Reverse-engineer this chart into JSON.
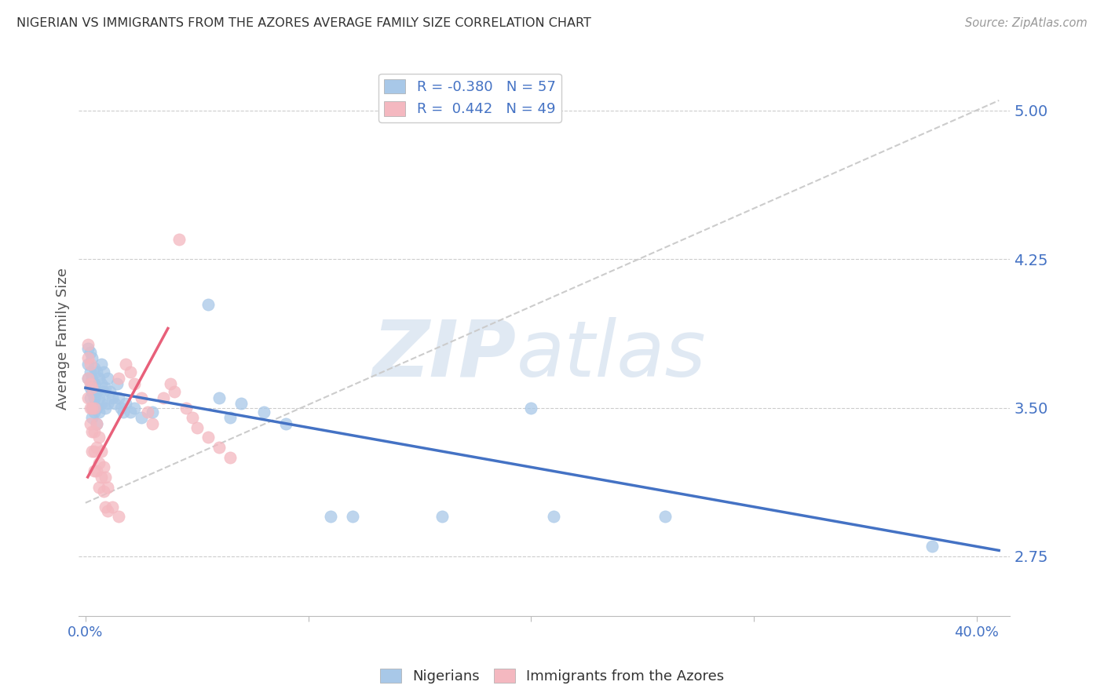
{
  "title": "NIGERIAN VS IMMIGRANTS FROM THE AZORES AVERAGE FAMILY SIZE CORRELATION CHART",
  "source": "Source: ZipAtlas.com",
  "ylabel": "Average Family Size",
  "yticks": [
    2.75,
    3.5,
    4.25,
    5.0
  ],
  "ylim": [
    2.45,
    5.25
  ],
  "xlim": [
    -0.003,
    0.415
  ],
  "watermark_zip": "ZIP",
  "watermark_atlas": "atlas",
  "legend_blue_r": "-0.380",
  "legend_blue_n": "57",
  "legend_pink_r": "0.442",
  "legend_pink_n": "49",
  "blue_color": "#a8c8e8",
  "pink_color": "#f4b8c0",
  "line_blue_color": "#4472c4",
  "line_pink_color": "#e8607a",
  "dash_color": "#cccccc",
  "background_color": "#ffffff",
  "grid_color": "#cccccc",
  "title_color": "#333333",
  "tick_color": "#4472c4",
  "ylabel_color": "#555555",
  "blue_scatter": [
    [
      0.001,
      3.8
    ],
    [
      0.001,
      3.72
    ],
    [
      0.001,
      3.65
    ],
    [
      0.002,
      3.78
    ],
    [
      0.002,
      3.68
    ],
    [
      0.002,
      3.6
    ],
    [
      0.002,
      3.55
    ],
    [
      0.003,
      3.75
    ],
    [
      0.003,
      3.65
    ],
    [
      0.003,
      3.58
    ],
    [
      0.003,
      3.5
    ],
    [
      0.003,
      3.45
    ],
    [
      0.004,
      3.7
    ],
    [
      0.004,
      3.62
    ],
    [
      0.004,
      3.55
    ],
    [
      0.004,
      3.48
    ],
    [
      0.005,
      3.68
    ],
    [
      0.005,
      3.58
    ],
    [
      0.005,
      3.5
    ],
    [
      0.005,
      3.42
    ],
    [
      0.006,
      3.65
    ],
    [
      0.006,
      3.55
    ],
    [
      0.006,
      3.48
    ],
    [
      0.007,
      3.72
    ],
    [
      0.007,
      3.62
    ],
    [
      0.007,
      3.52
    ],
    [
      0.008,
      3.68
    ],
    [
      0.008,
      3.58
    ],
    [
      0.009,
      3.6
    ],
    [
      0.009,
      3.5
    ],
    [
      0.01,
      3.65
    ],
    [
      0.01,
      3.52
    ],
    [
      0.011,
      3.58
    ],
    [
      0.012,
      3.55
    ],
    [
      0.013,
      3.52
    ],
    [
      0.014,
      3.62
    ],
    [
      0.015,
      3.55
    ],
    [
      0.016,
      3.5
    ],
    [
      0.017,
      3.48
    ],
    [
      0.018,
      3.52
    ],
    [
      0.02,
      3.48
    ],
    [
      0.022,
      3.5
    ],
    [
      0.025,
      3.45
    ],
    [
      0.03,
      3.48
    ],
    [
      0.055,
      4.02
    ],
    [
      0.06,
      3.55
    ],
    [
      0.065,
      3.45
    ],
    [
      0.07,
      3.52
    ],
    [
      0.08,
      3.48
    ],
    [
      0.09,
      3.42
    ],
    [
      0.11,
      2.95
    ],
    [
      0.12,
      2.95
    ],
    [
      0.16,
      2.95
    ],
    [
      0.2,
      3.5
    ],
    [
      0.21,
      2.95
    ],
    [
      0.26,
      2.95
    ],
    [
      0.38,
      2.8
    ]
  ],
  "pink_scatter": [
    [
      0.001,
      3.82
    ],
    [
      0.001,
      3.75
    ],
    [
      0.001,
      3.65
    ],
    [
      0.001,
      3.55
    ],
    [
      0.002,
      3.72
    ],
    [
      0.002,
      3.62
    ],
    [
      0.002,
      3.5
    ],
    [
      0.002,
      3.42
    ],
    [
      0.003,
      3.6
    ],
    [
      0.003,
      3.5
    ],
    [
      0.003,
      3.38
    ],
    [
      0.003,
      3.28
    ],
    [
      0.004,
      3.5
    ],
    [
      0.004,
      3.38
    ],
    [
      0.004,
      3.28
    ],
    [
      0.004,
      3.18
    ],
    [
      0.005,
      3.42
    ],
    [
      0.005,
      3.3
    ],
    [
      0.005,
      3.18
    ],
    [
      0.006,
      3.35
    ],
    [
      0.006,
      3.22
    ],
    [
      0.006,
      3.1
    ],
    [
      0.007,
      3.28
    ],
    [
      0.007,
      3.15
    ],
    [
      0.008,
      3.2
    ],
    [
      0.008,
      3.08
    ],
    [
      0.009,
      3.15
    ],
    [
      0.009,
      3.0
    ],
    [
      0.01,
      3.1
    ],
    [
      0.01,
      2.98
    ],
    [
      0.012,
      3.0
    ],
    [
      0.015,
      2.95
    ],
    [
      0.015,
      3.65
    ],
    [
      0.018,
      3.72
    ],
    [
      0.02,
      3.68
    ],
    [
      0.022,
      3.62
    ],
    [
      0.025,
      3.55
    ],
    [
      0.028,
      3.48
    ],
    [
      0.03,
      3.42
    ],
    [
      0.035,
      3.55
    ],
    [
      0.038,
      3.62
    ],
    [
      0.04,
      3.58
    ],
    [
      0.042,
      4.35
    ],
    [
      0.045,
      3.5
    ],
    [
      0.048,
      3.45
    ],
    [
      0.05,
      3.4
    ],
    [
      0.055,
      3.35
    ],
    [
      0.06,
      3.3
    ],
    [
      0.065,
      3.25
    ]
  ],
  "blue_line_x": [
    0.0,
    0.41
  ],
  "blue_line_y": [
    3.6,
    2.78
  ],
  "pink_line_x": [
    0.001,
    0.037
  ],
  "pink_line_y": [
    3.15,
    3.9
  ],
  "dash_line_x": [
    0.0,
    0.41
  ],
  "dash_line_y": [
    3.02,
    5.05
  ]
}
